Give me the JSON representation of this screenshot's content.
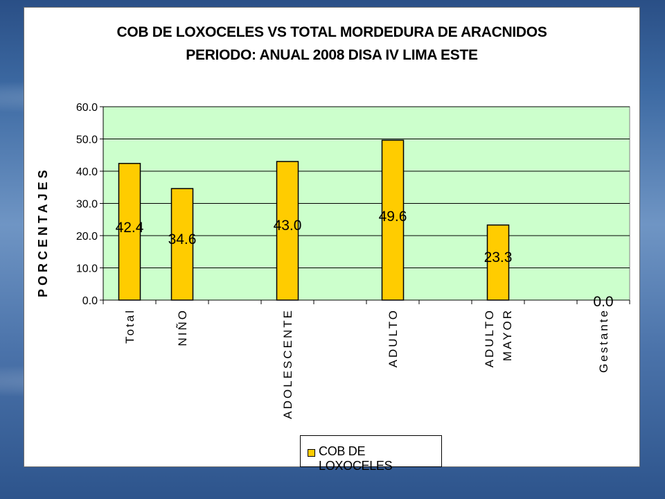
{
  "chart_data": {
    "type": "bar",
    "title": "COB DE LOXOCELES VS TOTAL MORDEDURA DE ARACNIDOS",
    "subtitle": "PERIODO: ANUAL 2008 DISA IV LIMA ESTE",
    "ylabel": "PORCENTAJES",
    "xlabel": "",
    "ylim": [
      0,
      60
    ],
    "yticks": [
      "0.0",
      "10.0",
      "20.0",
      "30.0",
      "40.0",
      "50.0",
      "60.0"
    ],
    "categories": [
      "Total",
      "NIÑO",
      "",
      "ADOLESCENTE",
      "",
      "ADULTO",
      "",
      "ADULTO MAYOR",
      "",
      "Gestante"
    ],
    "series": [
      {
        "name": "COB DE LOXOCELES",
        "values": [
          42.4,
          34.6,
          null,
          43.0,
          null,
          49.6,
          null,
          23.3,
          null,
          0.0
        ],
        "labels": [
          "42.4",
          "34.6",
          "",
          "43.0",
          "",
          "49.6",
          "",
          "23.3",
          "",
          "0.0"
        ]
      }
    ],
    "legend": "bottom",
    "grid": true,
    "colors": {
      "bar": "#ffcc00",
      "plot_bg": "#ccffcc",
      "grid": "#000000"
    }
  }
}
